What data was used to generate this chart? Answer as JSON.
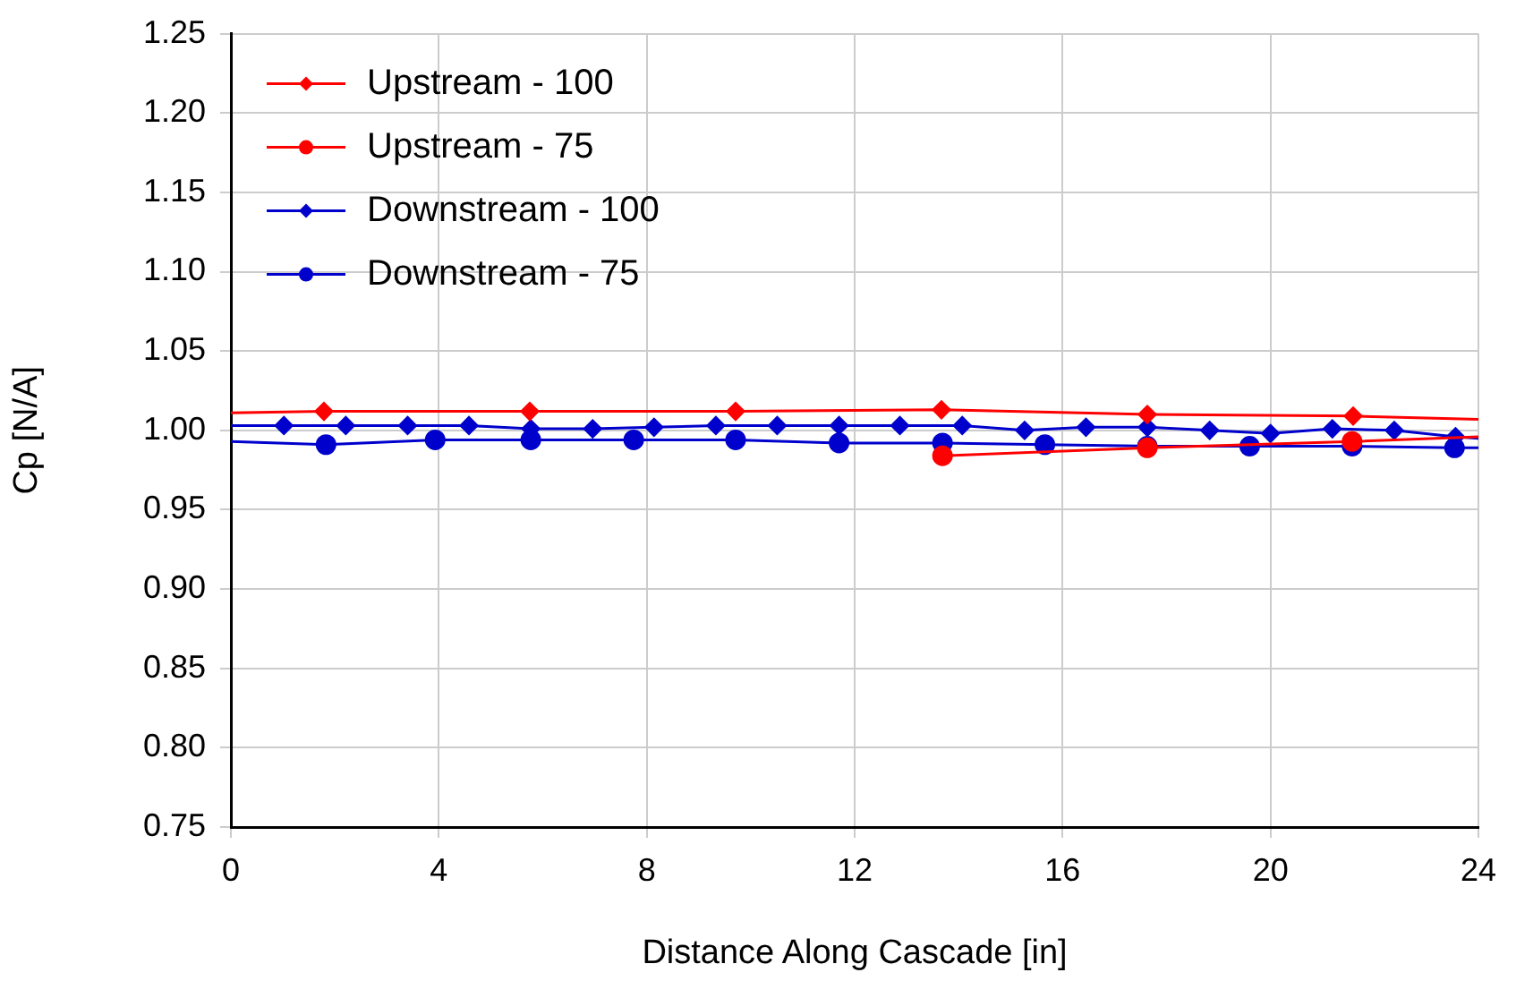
{
  "chart_data": {
    "type": "line",
    "xlabel": "Distance Along Cascade [in]",
    "ylabel": "Cp [N/A]",
    "xlim": [
      0,
      24
    ],
    "xticks": [
      0,
      4,
      8,
      12,
      16,
      20,
      24
    ],
    "ylim": [
      0.75,
      1.25
    ],
    "yticks": [
      0.75,
      {
        "value": 0.8,
        "label": "0.80"
      },
      0.85,
      {
        "value": 0.9,
        "label": "0.90"
      },
      0.95,
      {
        "value": 1.0,
        "label": "1.00"
      },
      1.05,
      {
        "value": 1.1,
        "label": "1.10"
      },
      1.15,
      {
        "value": 1.2,
        "label": "1.20"
      },
      1.25
    ],
    "grid": true,
    "legend": "top left",
    "line_style": "solid",
    "series": [
      {
        "name": "Upstream - 100",
        "color": "#ff0000",
        "marker": "diamond",
        "x": [
          0,
          1.79,
          5.75,
          9.71,
          13.67,
          17.63,
          21.59,
          24
        ],
        "values": [
          1.011,
          1.012,
          1.012,
          1.012,
          1.013,
          1.01,
          1.009,
          1.007
        ]
      },
      {
        "name": "Upstream - 75",
        "color": "#ff0000",
        "marker": "circle",
        "x": [
          13.69,
          17.63,
          21.57,
          24
        ],
        "values": [
          0.984,
          0.989,
          0.993,
          0.996
        ]
      },
      {
        "name": "Downstream - 100",
        "color": "#0000cc",
        "marker": "diamond",
        "x": [
          0,
          1.02,
          2.21,
          3.4,
          4.58,
          5.77,
          6.96,
          8.14,
          9.33,
          10.51,
          11.7,
          12.87,
          14.07,
          15.27,
          16.45,
          17.63,
          18.83,
          20.0,
          21.19,
          22.38,
          23.56,
          24
        ],
        "values": [
          1.003,
          1.003,
          1.003,
          1.003,
          1.003,
          1.001,
          1.001,
          1.002,
          1.003,
          1.003,
          1.003,
          1.003,
          1.003,
          1.0,
          1.002,
          1.002,
          1.0,
          0.998,
          1.001,
          1.0,
          0.996,
          0.995
        ]
      },
      {
        "name": "Downstream - 75",
        "color": "#0000cc",
        "marker": "circle",
        "x": [
          0,
          1.83,
          3.93,
          5.77,
          7.75,
          9.71,
          11.7,
          13.69,
          15.66,
          17.63,
          19.6,
          21.57,
          23.54,
          24
        ],
        "values": [
          0.993,
          0.991,
          0.994,
          0.994,
          0.994,
          0.994,
          0.992,
          0.992,
          0.991,
          0.99,
          0.99,
          0.99,
          0.989,
          0.989
        ]
      }
    ]
  }
}
